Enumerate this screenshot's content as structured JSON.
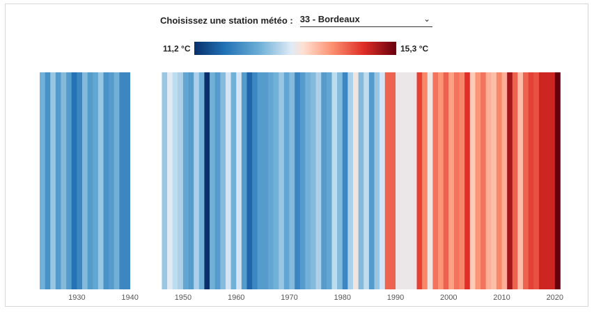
{
  "selector": {
    "label": "Choisissez une station météo :",
    "value": "33 - Bordeaux"
  },
  "legend": {
    "min_label": "11,2 °C",
    "max_label": "15,3 °C"
  },
  "colors": {
    "scale": [
      "#08306b",
      "#2171b5",
      "#6baed6",
      "#deebf7",
      "#fee0d2",
      "#fc9272",
      "#de2d26",
      "#67000d"
    ]
  },
  "chart_data": {
    "type": "heatmap",
    "title": "",
    "xlabel": "",
    "ylabel": "",
    "x_ticks": [
      "1930",
      "1940",
      "1950",
      "1960",
      "1970",
      "1980",
      "1990",
      "2000",
      "2010",
      "2020"
    ],
    "xlim": [
      1923,
      2021
    ],
    "value_range": [
      11.2,
      15.3
    ],
    "value_unit": "°C",
    "missing_years": [
      1940,
      1941,
      1942,
      1943,
      1944,
      1945
    ],
    "years": [
      1923,
      1924,
      1925,
      1926,
      1927,
      1928,
      1929,
      1930,
      1931,
      1932,
      1933,
      1934,
      1935,
      1936,
      1937,
      1938,
      1939,
      1946,
      1947,
      1948,
      1949,
      1950,
      1951,
      1952,
      1953,
      1954,
      1955,
      1956,
      1957,
      1958,
      1959,
      1960,
      1961,
      1962,
      1963,
      1964,
      1965,
      1966,
      1967,
      1968,
      1969,
      1970,
      1971,
      1972,
      1973,
      1974,
      1975,
      1976,
      1977,
      1978,
      1979,
      1980,
      1981,
      1982,
      1983,
      1984,
      1985,
      1986,
      1987,
      1988,
      1989,
      1990,
      1991,
      1992,
      1993,
      1994,
      1995,
      1996,
      1997,
      1998,
      1999,
      2000,
      2001,
      2002,
      2003,
      2004,
      2005,
      2006,
      2007,
      2008,
      2009,
      2010,
      2011,
      2012,
      2013,
      2014,
      2015,
      2016,
      2017,
      2018,
      2019,
      2020
    ],
    "values": [
      12.4,
      12.1,
      12.6,
      12.2,
      12.5,
      12.2,
      11.8,
      12.0,
      12.5,
      12.2,
      12.3,
      12.6,
      12.1,
      12.2,
      12.4,
      12.0,
      12.0,
      12.6,
      13.0,
      12.8,
      12.7,
      12.3,
      12.2,
      12.7,
      12.4,
      11.2,
      12.4,
      12.2,
      12.5,
      12.9,
      12.4,
      12.9,
      12.2,
      11.7,
      12.0,
      12.2,
      12.2,
      12.3,
      12.4,
      12.6,
      12.3,
      12.5,
      12.0,
      12.2,
      12.4,
      12.5,
      12.7,
      12.2,
      12.3,
      12.8,
      12.5,
      12.0,
      12.7,
      13.3,
      12.5,
      12.8,
      12.2,
      12.6,
      12.9,
      14.4,
      14.4,
      13.2,
      13.2,
      13.2,
      13.2,
      14.6,
      14.2,
      13.3,
      14.3,
      14.1,
      14.4,
      14.0,
      14.3,
      14.2,
      14.7,
      13.7,
      14.1,
      14.3,
      13.9,
      13.8,
      14.2,
      13.9,
      15.0,
      14.4,
      13.8,
      14.4,
      14.6,
      14.5,
      14.8,
      14.8,
      14.8,
      15.3
    ]
  }
}
